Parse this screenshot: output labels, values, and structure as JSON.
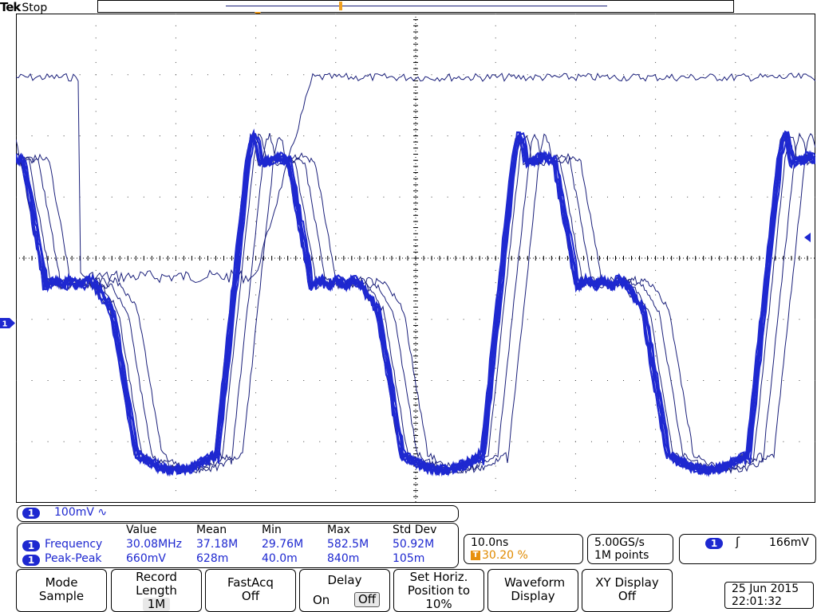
{
  "header": {
    "brand": "Tek",
    "status": "Stop"
  },
  "trigger_marker_label": "T",
  "channel": {
    "number": "1",
    "scale": "100mV",
    "coupling_symbol": "∿"
  },
  "measurements": {
    "headers": [
      "Value",
      "Mean",
      "Min",
      "Max",
      "Std Dev"
    ],
    "rows": [
      {
        "channel": "1",
        "name": "Frequency",
        "value": "30.08MHz",
        "mean": "37.18M",
        "min": "29.76M",
        "max": "582.5M",
        "std": "50.92M"
      },
      {
        "channel": "1",
        "name": "Peak-Peak",
        "value": "660mV",
        "mean": "628m",
        "min": "40.0m",
        "max": "840m",
        "std": "105m"
      }
    ]
  },
  "horizontal": {
    "timebase": "10.0ns",
    "trigger_position": "30.20 %"
  },
  "acquisition": {
    "sample_rate": "5.00GS/s",
    "record": "1M points"
  },
  "trigger": {
    "channel": "1",
    "slope_symbol": "ʃ",
    "level": "166mV"
  },
  "menu": [
    {
      "title": "Mode",
      "value": "Sample"
    },
    {
      "title": "Record Length",
      "value": "1M"
    },
    {
      "title": "FastAcq",
      "value": "Off"
    },
    {
      "title": "Delay",
      "on_label": "On",
      "off_label": "Off"
    },
    {
      "title": "Set Horiz. Position to 10%"
    },
    {
      "title": "Waveform Display"
    },
    {
      "title": "XY Display",
      "value": "Off"
    }
  ],
  "datetime": {
    "date": "25 Jun 2015",
    "time": "22:01:32"
  },
  "colors": {
    "trace": "#1e28d0",
    "trace_dark": "#1a1f7a",
    "trigger": "#e8900c",
    "grid": "#000000"
  }
}
